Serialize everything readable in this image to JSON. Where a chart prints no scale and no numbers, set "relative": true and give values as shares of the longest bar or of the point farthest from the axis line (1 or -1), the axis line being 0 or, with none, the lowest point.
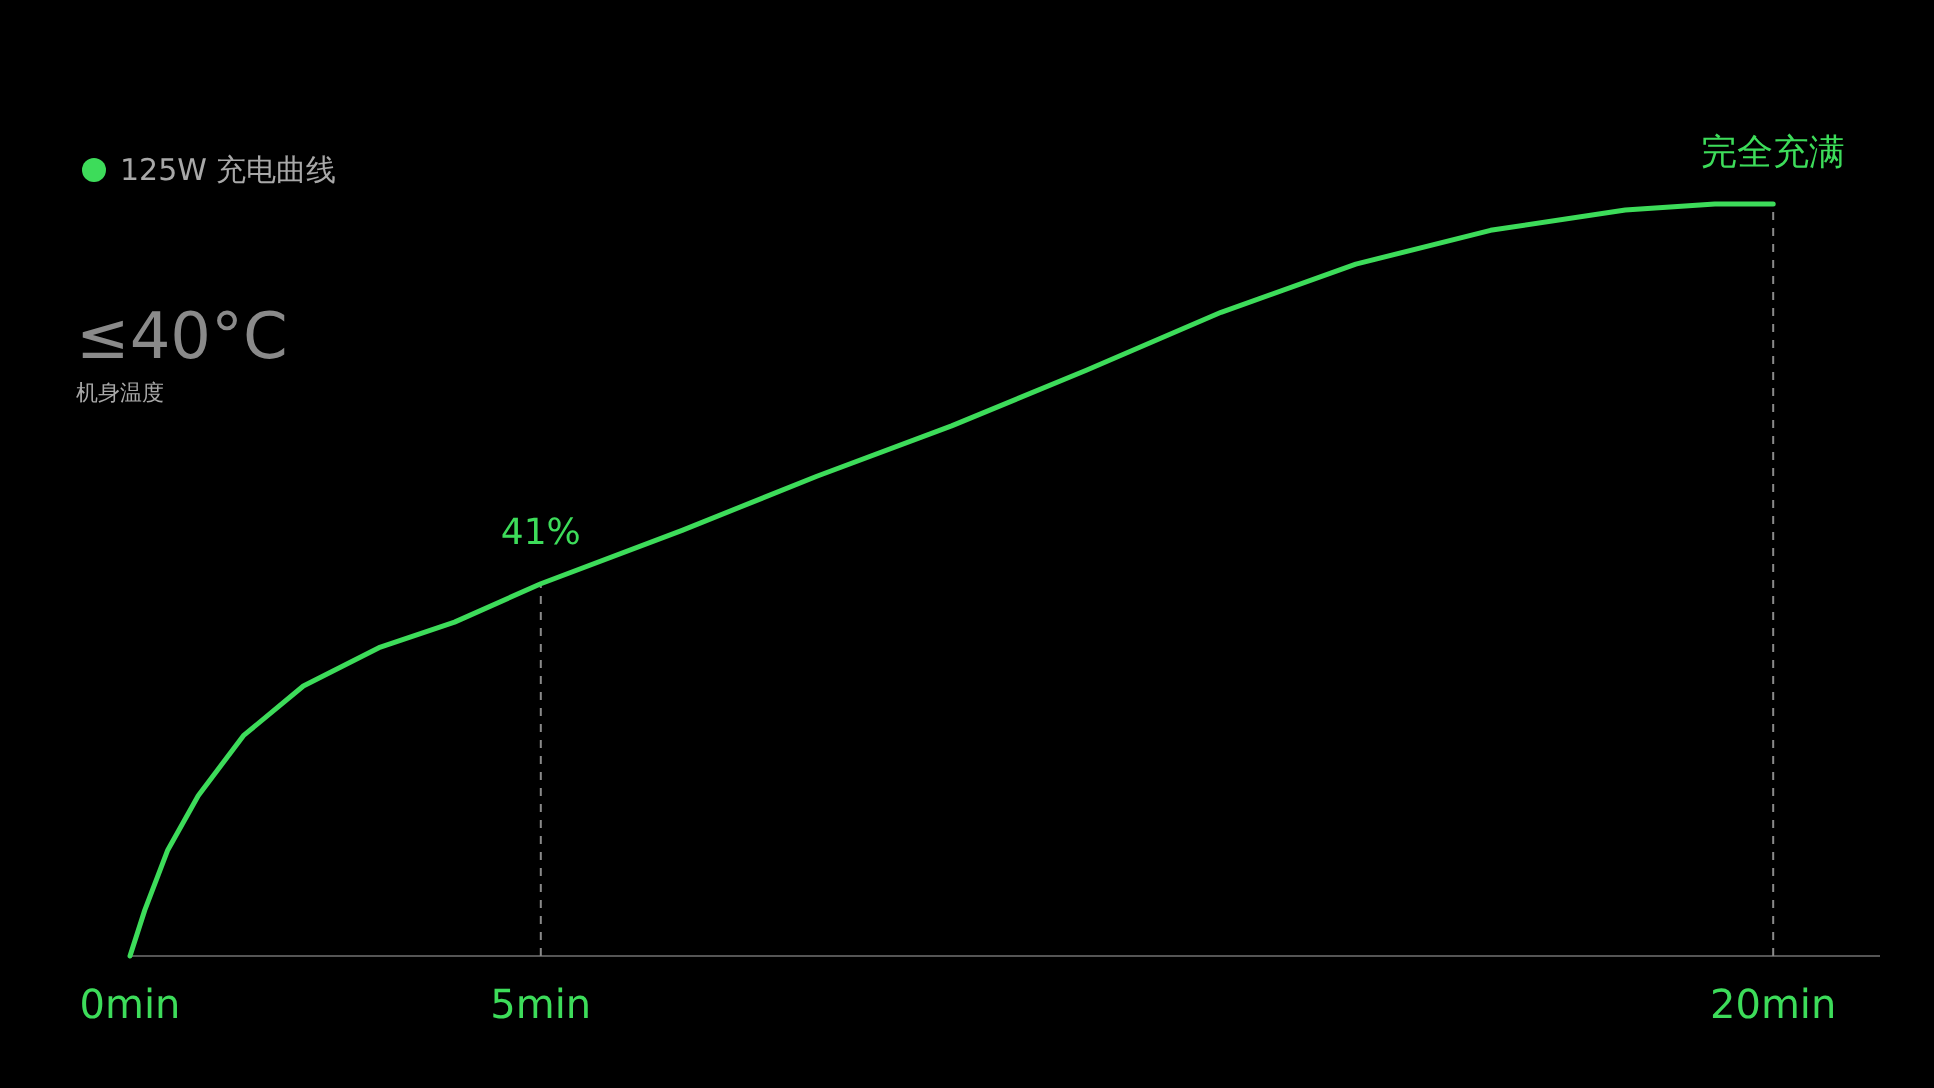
{
  "chart_data": {
    "type": "line",
    "relative": true,
    "x": [
      0,
      0.18,
      0.46,
      0.83,
      1.38,
      2.11,
      3.03,
      3.95,
      5,
      6.72,
      8.36,
      10,
      11.64,
      13.28,
      14.92,
      16.56,
      18.2,
      19.29,
      20
    ],
    "series": [
      {
        "name": "125W 充电曲线",
        "color": "#3ddc5a",
        "values": [
          0,
          0.061,
          0.141,
          0.213,
          0.293,
          0.359,
          0.41,
          0.444,
          0.495,
          0.566,
          0.638,
          0.705,
          0.779,
          0.856,
          0.92,
          0.965,
          0.992,
          1,
          1
        ]
      }
    ],
    "xlim": [
      0,
      21.3
    ],
    "xticks": [
      {
        "value": 0,
        "label": "0min"
      },
      {
        "value": 5,
        "label": "5min"
      },
      {
        "value": 20,
        "label": "20min"
      }
    ],
    "ref_lines": [
      {
        "axis": "x",
        "value": 5,
        "color": "#8a8a8a",
        "line_style": "dashed"
      },
      {
        "axis": "x",
        "value": 20,
        "color": "#8a8a8a",
        "line_style": "dashed"
      }
    ],
    "annotations": [
      {
        "text": "41%",
        "x": 5,
        "y": 0.495
      },
      {
        "text": "完全充满",
        "x": 20,
        "y": 1
      },
      "≤40°C",
      "机身温度"
    ],
    "legend": "top left",
    "marker": "none",
    "line_style": "solid"
  }
}
